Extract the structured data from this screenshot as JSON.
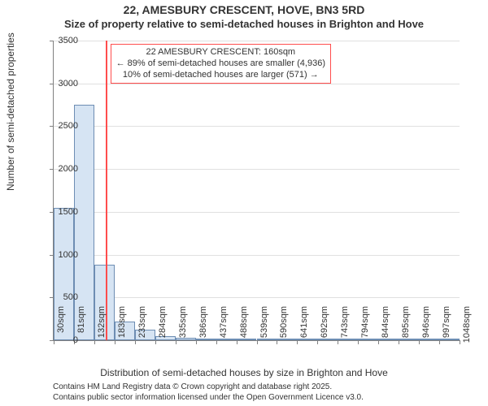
{
  "title_main": "22, AMESBURY CRESCENT, HOVE, BN3 5RD",
  "title_sub": "Size of property relative to semi-detached houses in Brighton and Hove",
  "y_label": "Number of semi-detached properties",
  "x_label": "Distribution of semi-detached houses by size in Brighton and Hove",
  "footer_line1": "Contains HM Land Registry data © Crown copyright and database right 2025.",
  "footer_line2": "Contains public sector information licensed under the Open Government Licence v3.0.",
  "annotation": {
    "line1": "22 AMESBURY CRESCENT: 160sqm",
    "line2": "← 89% of semi-detached houses are smaller (4,936)",
    "line3": "10% of semi-detached houses are larger (571) →"
  },
  "marker_x_value": 160,
  "chart": {
    "type": "histogram",
    "ylim": [
      0,
      3500
    ],
    "ytick_step": 500,
    "x_start": 30,
    "x_bin_width": 51,
    "x_tick_labels": [
      "30sqm",
      "81sqm",
      "132sqm",
      "183sqm",
      "233sqm",
      "284sqm",
      "335sqm",
      "386sqm",
      "437sqm",
      "488sqm",
      "539sqm",
      "590sqm",
      "641sqm",
      "692sqm",
      "743sqm",
      "794sqm",
      "844sqm",
      "895sqm",
      "946sqm",
      "997sqm",
      "1048sqm"
    ],
    "values": [
      1550,
      2750,
      880,
      220,
      120,
      50,
      30,
      20,
      15,
      10,
      8,
      6,
      5,
      4,
      3,
      2,
      2,
      1,
      1,
      1
    ],
    "bar_fill": "#d6e4f3",
    "bar_stroke": "#6d8db3",
    "background_color": "#ffffff",
    "grid_color": "#e0e0e0",
    "axis_color": "#808080",
    "marker_color": "#ff4d4d",
    "text_color": "#333333",
    "title_fontsize": 14,
    "subtitle_fontsize": 13,
    "label_fontsize": 12,
    "tick_fontsize": 11,
    "footer_fontsize": 10
  }
}
